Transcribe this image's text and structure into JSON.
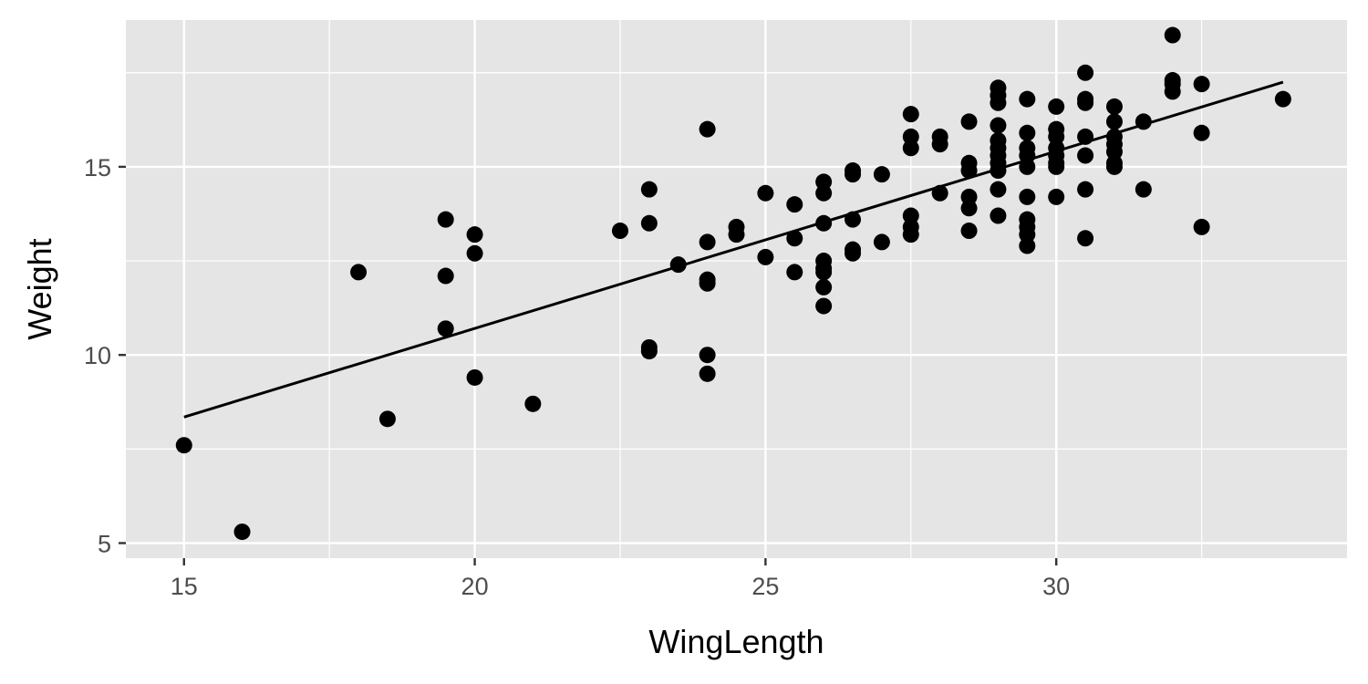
{
  "chart_data": {
    "type": "scatter",
    "xlabel": "WingLength",
    "ylabel": "Weight",
    "xlim": [
      14.0,
      35.0
    ],
    "ylim": [
      4.6,
      18.9
    ],
    "x_ticks": [
      15,
      20,
      25,
      30
    ],
    "x_tick_labels": [
      "15",
      "20",
      "25",
      "30"
    ],
    "y_ticks": [
      5,
      10,
      15
    ],
    "y_tick_labels": [
      "5",
      "10",
      "15"
    ],
    "grid": true,
    "legend": "none",
    "colors": {
      "panel": "#e5e5e5",
      "grid": "#ffffff",
      "points": "#000000",
      "line": "#000000",
      "text": "#4d4d4d"
    },
    "trend_line": {
      "type": "linear fit",
      "x": [
        15.0,
        33.9
      ],
      "y": [
        8.35,
        17.25
      ]
    },
    "points": [
      [
        15,
        7.6
      ],
      [
        16,
        5.3
      ],
      [
        18,
        12.2
      ],
      [
        18.5,
        8.3
      ],
      [
        19.5,
        13.6
      ],
      [
        19.5,
        12.1
      ],
      [
        19.5,
        10.7
      ],
      [
        20,
        13.2
      ],
      [
        20,
        12.7
      ],
      [
        20,
        9.4
      ],
      [
        21,
        8.7
      ],
      [
        22.5,
        13.3
      ],
      [
        23,
        14.4
      ],
      [
        23,
        13.5
      ],
      [
        23,
        10.2
      ],
      [
        23,
        10.1
      ],
      [
        23.5,
        12.4
      ],
      [
        24,
        16.0
      ],
      [
        24,
        13.0
      ],
      [
        24,
        12.0
      ],
      [
        24,
        11.9
      ],
      [
        24,
        10.0
      ],
      [
        24,
        9.5
      ],
      [
        24.5,
        13.4
      ],
      [
        24.5,
        13.2
      ],
      [
        25,
        14.3
      ],
      [
        25,
        12.6
      ],
      [
        25.5,
        14.0
      ],
      [
        25.5,
        13.1
      ],
      [
        25.5,
        12.2
      ],
      [
        26,
        14.6
      ],
      [
        26,
        14.3
      ],
      [
        26,
        13.5
      ],
      [
        26,
        12.5
      ],
      [
        26,
        12.3
      ],
      [
        26,
        12.2
      ],
      [
        26,
        11.8
      ],
      [
        26,
        11.3
      ],
      [
        26.5,
        14.9
      ],
      [
        26.5,
        14.8
      ],
      [
        26.5,
        13.6
      ],
      [
        26.5,
        12.8
      ],
      [
        26.5,
        12.7
      ],
      [
        27,
        14.8
      ],
      [
        27,
        13.0
      ],
      [
        27.5,
        16.4
      ],
      [
        27.5,
        15.8
      ],
      [
        27.5,
        15.5
      ],
      [
        27.5,
        13.7
      ],
      [
        27.5,
        13.4
      ],
      [
        27.5,
        13.2
      ],
      [
        28,
        15.8
      ],
      [
        28,
        15.6
      ],
      [
        28,
        14.3
      ],
      [
        28.5,
        16.2
      ],
      [
        28.5,
        15.1
      ],
      [
        28.5,
        14.9
      ],
      [
        28.5,
        14.2
      ],
      [
        28.5,
        13.9
      ],
      [
        28.5,
        13.3
      ],
      [
        29,
        17.1
      ],
      [
        29,
        16.9
      ],
      [
        29,
        16.7
      ],
      [
        29,
        16.1
      ],
      [
        29,
        15.7
      ],
      [
        29,
        15.5
      ],
      [
        29,
        15.3
      ],
      [
        29,
        15.1
      ],
      [
        29,
        14.9
      ],
      [
        29,
        14.4
      ],
      [
        29,
        13.7
      ],
      [
        29.5,
        16.8
      ],
      [
        29.5,
        15.9
      ],
      [
        29.5,
        15.5
      ],
      [
        29.5,
        15.3
      ],
      [
        29.5,
        15.0
      ],
      [
        29.5,
        14.2
      ],
      [
        29.5,
        13.6
      ],
      [
        29.5,
        13.4
      ],
      [
        29.5,
        13.2
      ],
      [
        29.5,
        12.9
      ],
      [
        30,
        16.6
      ],
      [
        30,
        16.0
      ],
      [
        30,
        15.8
      ],
      [
        30,
        15.5
      ],
      [
        30,
        15.3
      ],
      [
        30,
        15.1
      ],
      [
        30,
        15.0
      ],
      [
        30,
        14.2
      ],
      [
        30.5,
        17.5
      ],
      [
        30.5,
        16.8
      ],
      [
        30.5,
        16.7
      ],
      [
        30.5,
        15.8
      ],
      [
        30.5,
        15.3
      ],
      [
        30.5,
        14.4
      ],
      [
        30.5,
        13.1
      ],
      [
        31,
        16.6
      ],
      [
        31,
        16.2
      ],
      [
        31,
        15.8
      ],
      [
        31,
        15.6
      ],
      [
        31,
        15.4
      ],
      [
        31,
        15.1
      ],
      [
        31,
        15.0
      ],
      [
        31.5,
        16.2
      ],
      [
        31.5,
        14.4
      ],
      [
        32,
        18.5
      ],
      [
        32,
        17.3
      ],
      [
        32,
        17.2
      ],
      [
        32,
        17.0
      ],
      [
        32.5,
        17.2
      ],
      [
        32.5,
        15.9
      ],
      [
        32.5,
        13.4
      ],
      [
        33.9,
        16.8
      ]
    ]
  }
}
